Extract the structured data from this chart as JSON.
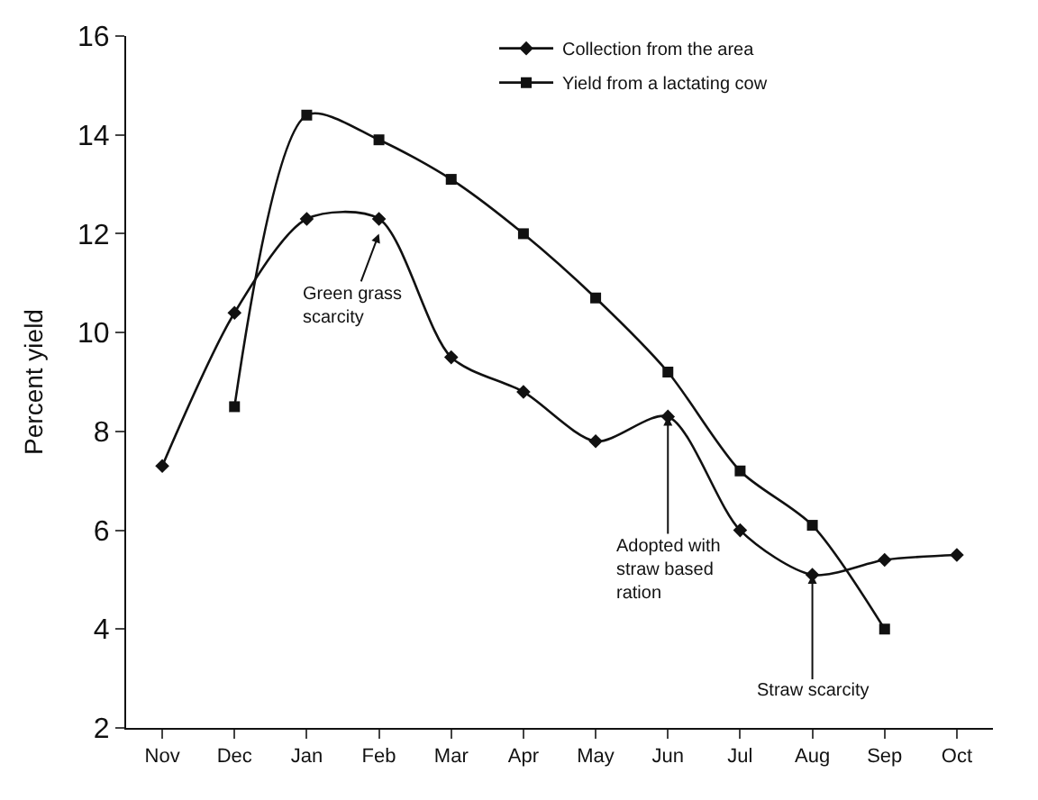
{
  "chart_data": {
    "type": "line",
    "ylabel": "Percent yield",
    "categories": [
      "Nov",
      "Dec",
      "Jan",
      "Feb",
      "Mar",
      "Apr",
      "May",
      "Jun",
      "Jul",
      "Aug",
      "Sep",
      "Oct"
    ],
    "series": [
      {
        "name": "Collection from the area",
        "color": "#111111",
        "marker": "diamond",
        "values": [
          7.3,
          10.4,
          12.3,
          12.3,
          9.5,
          8.8,
          7.8,
          8.3,
          6.0,
          5.1,
          5.4,
          5.5
        ]
      },
      {
        "name": "Yield from a lactating cow",
        "color": "#111111",
        "marker": "square",
        "values": [
          null,
          8.5,
          14.4,
          13.9,
          13.1,
          12.0,
          10.7,
          9.2,
          7.2,
          6.1,
          4.0,
          null
        ]
      }
    ],
    "ylim": [
      2,
      16
    ],
    "yticks": [
      2,
      4,
      6,
      8,
      10,
      12,
      14,
      16
    ],
    "legend": "top right",
    "annotations": [
      {
        "text": "Green grass scarcity",
        "x": "Feb",
        "y": 12.0
      },
      {
        "text": "Adopted with straw based ration",
        "x": "Jun",
        "y": 8.3
      },
      {
        "text": "Straw scarcity",
        "x": "Aug",
        "y": 5.1
      }
    ]
  }
}
